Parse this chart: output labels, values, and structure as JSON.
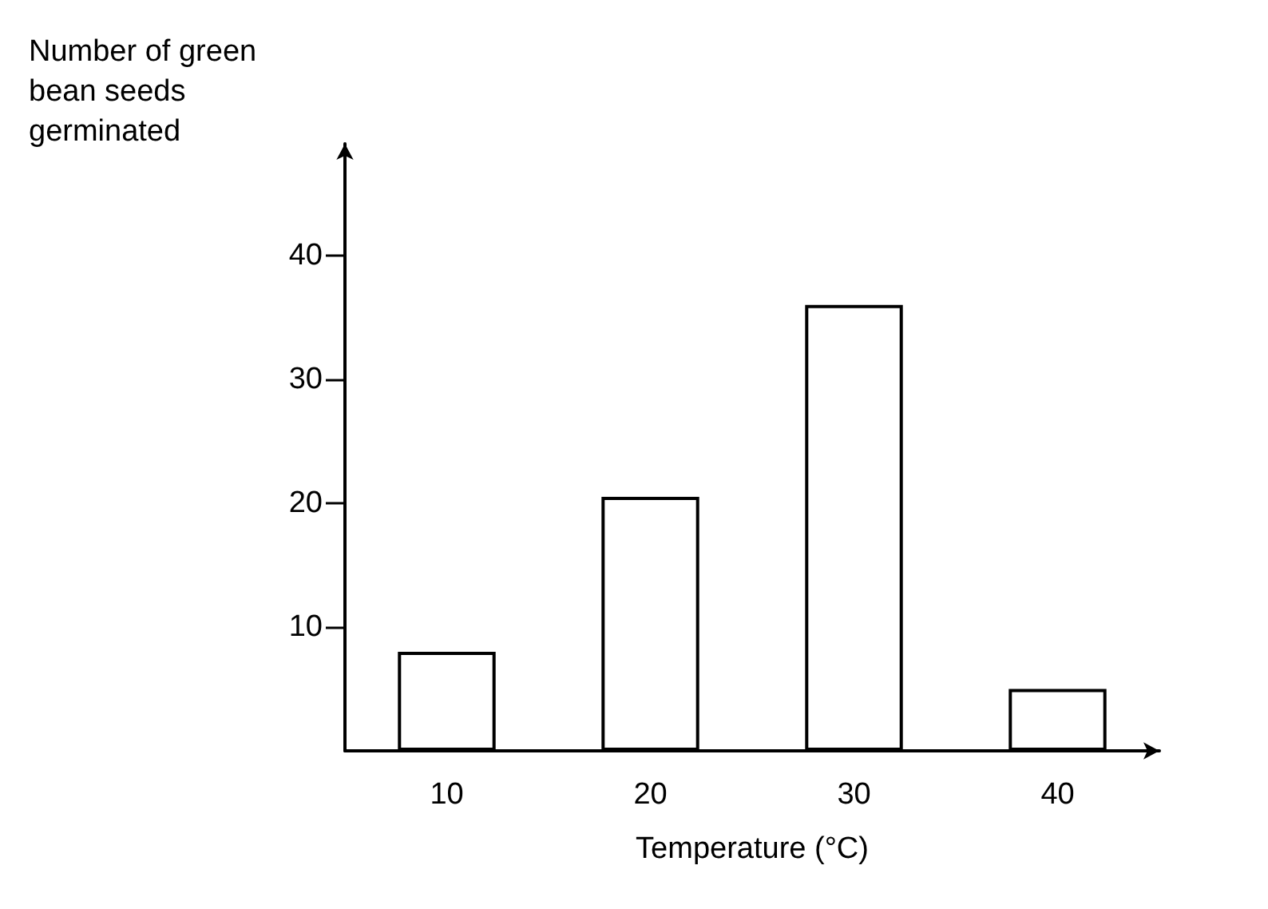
{
  "chart_data": {
    "type": "bar",
    "ylabel": "Number of green bean seeds germinated",
    "xlabel": "Temperature (°C)",
    "categories": [
      "10",
      "20",
      "30",
      "40"
    ],
    "values": [
      8,
      20.5,
      36,
      5
    ],
    "color": "#ffffff",
    "ylim": [
      0,
      49
    ],
    "yticks": [
      10,
      20,
      30,
      40
    ],
    "grid": false
  }
}
